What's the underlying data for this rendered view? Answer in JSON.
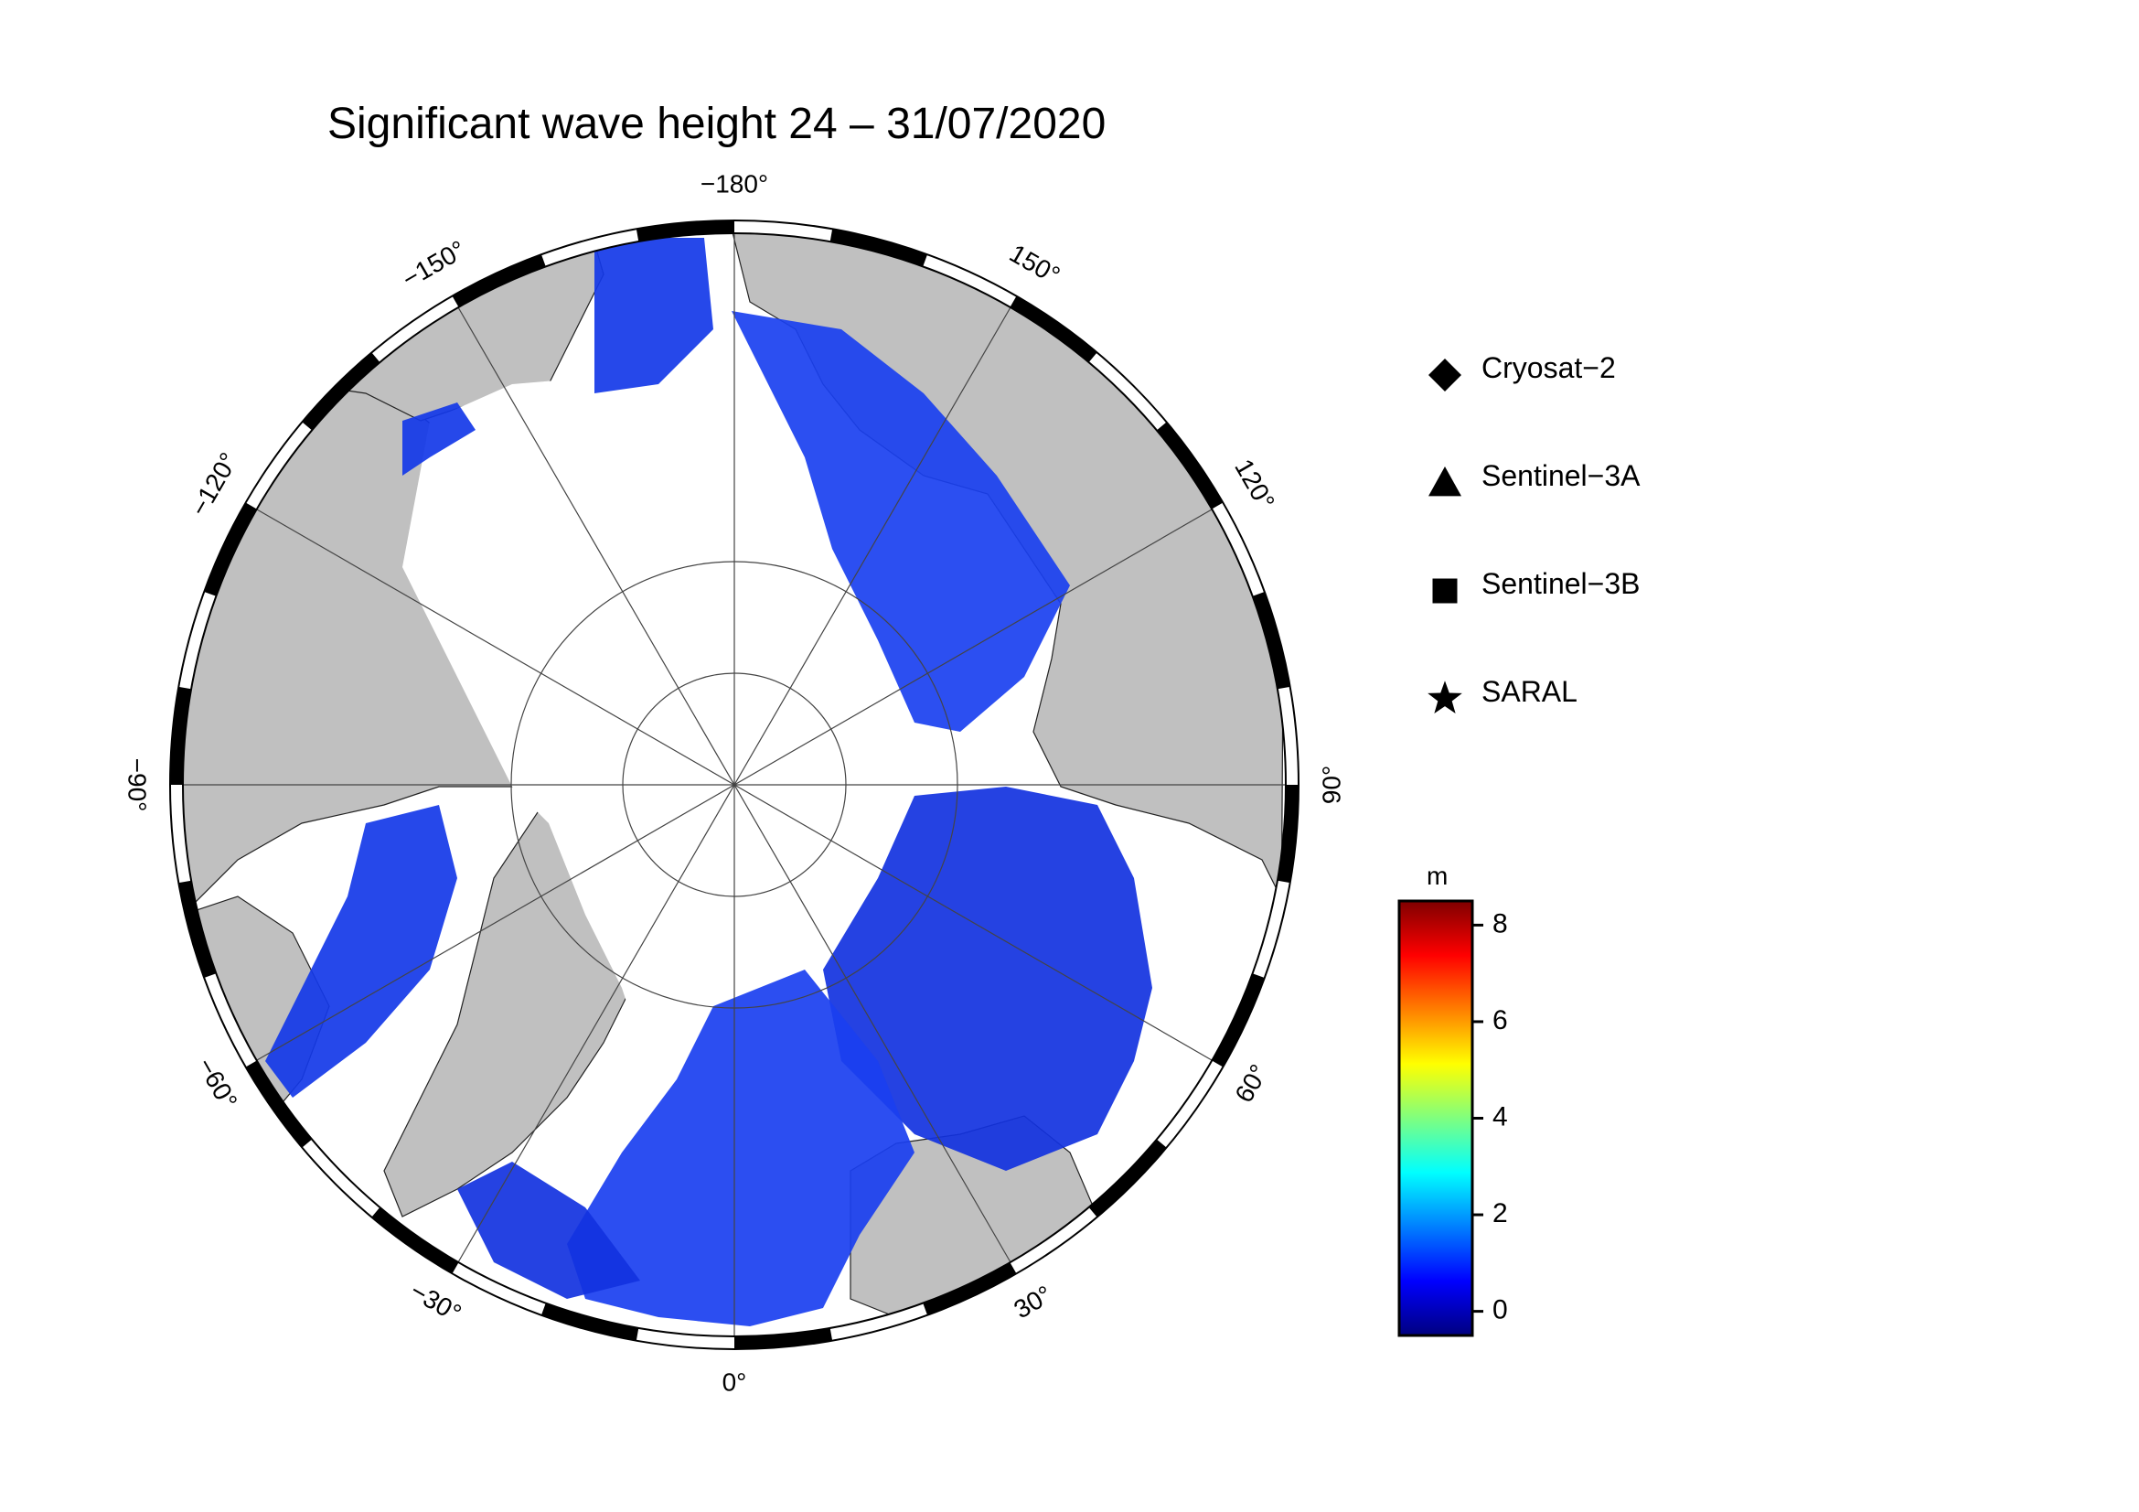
{
  "title": "Significant wave height 24 – 31/07/2020",
  "map": {
    "projection": "north-polar-stereographic",
    "land_color": "#c0c0c0",
    "ice_color": "#ffffff",
    "ocean_data_color": "#1030e8",
    "lon_labels": [
      {
        "lon": 180,
        "text": "−180°"
      },
      {
        "lon": 150,
        "text": "150°"
      },
      {
        "lon": 120,
        "text": "120°"
      },
      {
        "lon": 90,
        "text": "90°"
      },
      {
        "lon": 60,
        "text": "60°"
      },
      {
        "lon": 30,
        "text": "30°"
      },
      {
        "lon": 0,
        "text": "0°"
      },
      {
        "lon": -30,
        "text": "−30°"
      },
      {
        "lon": -60,
        "text": "−60°"
      },
      {
        "lon": -90,
        "text": "−90°"
      },
      {
        "lon": -120,
        "text": "−120°"
      },
      {
        "lon": -150,
        "text": "−150°"
      }
    ]
  },
  "legend": {
    "items": [
      {
        "symbol": "diamond",
        "label": "Cryosat−2"
      },
      {
        "symbol": "triangle",
        "label": "Sentinel−3A"
      },
      {
        "symbol": "square",
        "label": "Sentinel−3B"
      },
      {
        "symbol": "star",
        "label": "SARAL"
      }
    ]
  },
  "colorbar": {
    "unit": "m",
    "range": [
      -0.5,
      8.5
    ],
    "ticks": [
      "0",
      "2",
      "4",
      "6",
      "8"
    ],
    "colors": [
      "#00007f",
      "#0000ff",
      "#007fff",
      "#00ffff",
      "#7fff7f",
      "#ffff00",
      "#ff7f00",
      "#ff0000",
      "#7f0000"
    ]
  }
}
